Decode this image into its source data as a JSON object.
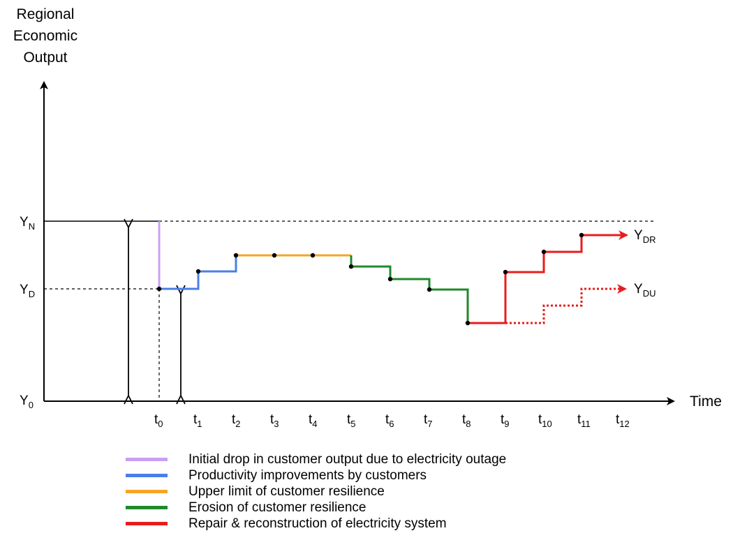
{
  "axes": {
    "y_title_lines": [
      "Regional",
      "Economic",
      "Output"
    ],
    "x_title": "Time"
  },
  "y_levels": [
    {
      "base": "Y",
      "sub": "N"
    },
    {
      "base": "Y",
      "sub": "D"
    },
    {
      "base": "Y",
      "sub": "0"
    }
  ],
  "x_ticks": [
    {
      "base": "t",
      "sub": "0"
    },
    {
      "base": "t",
      "sub": "1"
    },
    {
      "base": "t",
      "sub": "2"
    },
    {
      "base": "t",
      "sub": "3"
    },
    {
      "base": "t",
      "sub": "4"
    },
    {
      "base": "t",
      "sub": "5"
    },
    {
      "base": "t",
      "sub": "6"
    },
    {
      "base": "t",
      "sub": "7"
    },
    {
      "base": "t",
      "sub": "8"
    },
    {
      "base": "t",
      "sub": "9"
    },
    {
      "base": "t",
      "sub": "10"
    },
    {
      "base": "t",
      "sub": "11"
    },
    {
      "base": "t",
      "sub": "12"
    }
  ],
  "end_labels": [
    {
      "base": "Y",
      "sub": "DR"
    },
    {
      "base": "Y",
      "sub": "DU"
    }
  ],
  "colors": {
    "purple": "#c9a0f0",
    "blue": "#4a7fe6",
    "orange": "#f5a623",
    "green": "#1e8a2a",
    "red": "#e81c1c"
  },
  "legend": [
    {
      "color": "#c9a0f0",
      "label": "Initial drop in customer output due to electricity outage"
    },
    {
      "color": "#4a7fe6",
      "label": "Productivity improvements by customers"
    },
    {
      "color": "#f5a623",
      "label": "Upper limit of customer resilience"
    },
    {
      "color": "#1e8a2a",
      "label": "Erosion of customer resilience"
    },
    {
      "color": "#e81c1c",
      "label": "Repair & reconstruction of electricity system"
    }
  ]
}
